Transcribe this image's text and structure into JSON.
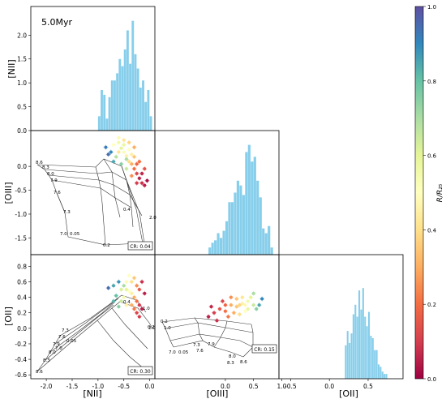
{
  "figure": {
    "age_label": "5.0Myr",
    "colorbar": {
      "label": "R/R₂₅",
      "ticks": [
        "0.0",
        "0.2",
        "0.4",
        "0.6",
        "0.8",
        "1.0"
      ],
      "colormap": "Spectral"
    }
  },
  "chart_data": [
    {
      "type": "bar",
      "panel": "hist-NII",
      "ylabel": "[NII]",
      "xlim": [
        -2.3,
        0.1
      ],
      "ylim": [
        0,
        2.6
      ],
      "yticks": [
        "0.0",
        "0.5",
        "1.0",
        "1.5",
        "2.0"
      ],
      "bin_width": 0.05,
      "bin_start": -1.0,
      "values": [
        0.3,
        0.85,
        0.75,
        0.25,
        0.7,
        1.05,
        1.05,
        1.2,
        1.5,
        1.35,
        1.7,
        2.1,
        1.4,
        2.3,
        1.6,
        1.3,
        0.9,
        1.05,
        0.6,
        0.85,
        0.3
      ],
      "color": "#87ceeb"
    },
    {
      "type": "scatter",
      "panel": "NII-vs-OIII",
      "ylabel": "[OIII]",
      "xlim": [
        -2.3,
        0.1
      ],
      "ylim": [
        -1.85,
        0.75
      ],
      "yticks": [
        "0.0",
        "-0.5",
        "-1.0",
        "-1.5"
      ],
      "grid_labels": [
        "8.6",
        "8.3",
        "8.0",
        "7.9",
        "7.6",
        "7.3",
        "7.0",
        "0.05",
        "0.2",
        "0.4",
        "1.0",
        "2.0"
      ],
      "annotation": "CR: 0.04",
      "points": [
        {
          "x": -0.7,
          "y": 0.45,
          "r": 0.5
        },
        {
          "x": -0.6,
          "y": 0.5,
          "r": 0.55
        },
        {
          "x": -0.55,
          "y": 0.38,
          "r": 0.6
        },
        {
          "x": -0.5,
          "y": 0.3,
          "r": 0.52
        },
        {
          "x": -0.45,
          "y": 0.22,
          "r": 0.45
        },
        {
          "x": -0.4,
          "y": 0.1,
          "r": 0.4
        },
        {
          "x": -0.35,
          "y": 0.05,
          "r": 0.3
        },
        {
          "x": -0.3,
          "y": -0.05,
          "r": 0.2
        },
        {
          "x": -0.25,
          "y": -0.15,
          "r": 0.12
        },
        {
          "x": -0.2,
          "y": -0.25,
          "r": 0.05
        },
        {
          "x": -0.15,
          "y": -0.35,
          "r": 0.08
        },
        {
          "x": -0.3,
          "y": 0.2,
          "r": 0.35
        },
        {
          "x": -0.4,
          "y": 0.35,
          "r": 0.5
        },
        {
          "x": -0.5,
          "y": 0.45,
          "r": 0.58
        },
        {
          "x": -0.6,
          "y": 0.3,
          "r": 0.42
        },
        {
          "x": -0.65,
          "y": 0.2,
          "r": 0.68
        },
        {
          "x": -0.75,
          "y": 0.3,
          "r": 0.9
        },
        {
          "x": -0.85,
          "y": 0.4,
          "r": 0.92
        },
        {
          "x": -0.55,
          "y": 0.05,
          "r": 0.75
        },
        {
          "x": -0.45,
          "y": -0.05,
          "r": 0.65
        },
        {
          "x": -0.35,
          "y": -0.2,
          "r": 0.25
        },
        {
          "x": -0.25,
          "y": -0.35,
          "r": 0.1
        },
        {
          "x": -0.2,
          "y": 0.1,
          "r": 0.2
        },
        {
          "x": -0.1,
          "y": -0.05,
          "r": 0.15
        },
        {
          "x": -0.1,
          "y": -0.4,
          "r": 0.05
        },
        {
          "x": -0.05,
          "y": -0.3,
          "r": 0.02
        },
        {
          "x": -0.6,
          "y": 0.6,
          "r": 0.48
        },
        {
          "x": -0.5,
          "y": 0.55,
          "r": 0.42
        },
        {
          "x": -0.4,
          "y": 0.5,
          "r": 0.38
        },
        {
          "x": -0.3,
          "y": 0.4,
          "r": 0.3
        },
        {
          "x": -0.7,
          "y": 0.1,
          "r": 0.85
        },
        {
          "x": -0.8,
          "y": 0.25,
          "r": 0.95
        },
        {
          "x": -0.45,
          "y": 0.15,
          "r": 0.7
        },
        {
          "x": -0.35,
          "y": 0.25,
          "r": 0.45
        },
        {
          "x": -0.25,
          "y": 0.05,
          "r": 0.18
        },
        {
          "x": -0.15,
          "y": -0.15,
          "r": 0.06
        }
      ]
    },
    {
      "type": "bar",
      "panel": "hist-OIII",
      "xlim": [
        -1.25,
        0.95
      ],
      "ylim": [
        0,
        2.6
      ],
      "bin_width": 0.05,
      "bin_start": -0.3,
      "values": [
        0.15,
        0.25,
        0.3,
        0.45,
        0.35,
        0.5,
        0.7,
        1.1,
        1.1,
        1.3,
        1.55,
        1.45,
        1.25,
        2.15,
        2.3,
        1.95,
        2.05,
        1.55,
        1.2,
        0.55,
        0.45,
        0.6,
        0.15
      ],
      "color": "#87ceeb"
    },
    {
      "type": "scatter",
      "panel": "NII-vs-OII",
      "xlabel": "[NII]",
      "ylabel": "[OII]",
      "xlim": [
        -2.3,
        0.1
      ],
      "ylim": [
        -0.65,
        0.95
      ],
      "xticks": [
        "-2.0",
        "-1.5",
        "-1.0",
        "-0.5",
        "0.0"
      ],
      "yticks": [
        "0.8",
        "0.6",
        "0.4",
        "0.2",
        "0.0",
        "-0.2",
        "-0.4",
        "-0.6"
      ],
      "grid_labels": [
        "8.6",
        "8.3",
        "8.0",
        "7.9",
        "7.6",
        "7.3",
        "7.0",
        "0.05",
        "0.2",
        "0.4",
        "1.0",
        "2.0"
      ],
      "annotation": "CR: 0.30",
      "points": [
        {
          "x": -0.7,
          "y": 0.55,
          "r": 0.85
        },
        {
          "x": -0.6,
          "y": 0.6,
          "r": 0.88
        },
        {
          "x": -0.5,
          "y": 0.55,
          "r": 0.7
        },
        {
          "x": -0.45,
          "y": 0.5,
          "r": 0.6
        },
        {
          "x": -0.4,
          "y": 0.48,
          "r": 0.5
        },
        {
          "x": -0.35,
          "y": 0.45,
          "r": 0.45
        },
        {
          "x": -0.3,
          "y": 0.4,
          "r": 0.3
        },
        {
          "x": -0.25,
          "y": 0.35,
          "r": 0.2
        },
        {
          "x": -0.2,
          "y": 0.3,
          "r": 0.1
        },
        {
          "x": -0.15,
          "y": 0.25,
          "r": 0.05
        },
        {
          "x": -0.35,
          "y": 0.6,
          "r": 0.4
        },
        {
          "x": -0.3,
          "y": 0.65,
          "r": 0.35
        },
        {
          "x": -0.25,
          "y": 0.55,
          "r": 0.25
        },
        {
          "x": -0.2,
          "y": 0.5,
          "r": 0.15
        },
        {
          "x": -0.5,
          "y": 0.4,
          "r": 0.55
        },
        {
          "x": -0.55,
          "y": 0.35,
          "r": 0.65
        },
        {
          "x": -0.45,
          "y": 0.3,
          "r": 0.45
        },
        {
          "x": -0.35,
          "y": 0.3,
          "r": 0.3
        },
        {
          "x": -0.25,
          "y": 0.2,
          "r": 0.12
        },
        {
          "x": -0.8,
          "y": 0.52,
          "r": 0.95
        },
        {
          "x": -0.65,
          "y": 0.42,
          "r": 0.8
        },
        {
          "x": -0.4,
          "y": 0.68,
          "r": 0.5
        },
        {
          "x": -0.1,
          "y": 0.45,
          "r": 0.05
        },
        {
          "x": -0.15,
          "y": 0.6,
          "r": 0.08
        },
        {
          "x": -0.3,
          "y": 0.25,
          "r": 0.22
        },
        {
          "x": -0.2,
          "y": 0.15,
          "r": 0.1
        },
        {
          "x": -0.55,
          "y": 0.5,
          "r": 0.62
        },
        {
          "x": -0.6,
          "y": 0.28,
          "r": 0.75
        },
        {
          "x": -0.7,
          "y": 0.35,
          "r": 0.82
        },
        {
          "x": -0.45,
          "y": 0.6,
          "r": 0.48
        }
      ]
    },
    {
      "type": "scatter",
      "panel": "OIII-vs-OII",
      "xlabel": "[OIII]",
      "xlim": [
        -1.25,
        0.95
      ],
      "ylim": [
        -0.65,
        0.95
      ],
      "xticks": [
        "0.0",
        "0.5",
        "1.0"
      ],
      "grid_labels": [
        "0.2",
        "1.0",
        "7.0",
        "0.05",
        "7.3",
        "7.6",
        "7.9",
        "8.0",
        "8.3",
        "8.6"
      ],
      "annotation": "CR: 0.15",
      "points": [
        {
          "x": -0.2,
          "y": 0.2,
          "r": 0.1
        },
        {
          "x": -0.1,
          "y": 0.25,
          "r": 0.15
        },
        {
          "x": 0.0,
          "y": 0.22,
          "r": 0.2
        },
        {
          "x": 0.1,
          "y": 0.3,
          "r": 0.3
        },
        {
          "x": 0.2,
          "y": 0.28,
          "r": 0.35
        },
        {
          "x": 0.3,
          "y": 0.32,
          "r": 0.45
        },
        {
          "x": 0.4,
          "y": 0.35,
          "r": 0.55
        },
        {
          "x": 0.5,
          "y": 0.3,
          "r": 0.65
        },
        {
          "x": 0.55,
          "y": 0.25,
          "r": 0.75
        },
        {
          "x": 0.6,
          "y": 0.3,
          "r": 0.85
        },
        {
          "x": -0.3,
          "y": 0.15,
          "r": 0.05
        },
        {
          "x": -0.15,
          "y": 0.1,
          "r": 0.08
        },
        {
          "x": 0.05,
          "y": 0.15,
          "r": 0.22
        },
        {
          "x": 0.15,
          "y": 0.2,
          "r": 0.3
        },
        {
          "x": 0.25,
          "y": 0.18,
          "r": 0.4
        },
        {
          "x": 0.35,
          "y": 0.22,
          "r": 0.5
        },
        {
          "x": 0.45,
          "y": 0.4,
          "r": 0.6
        },
        {
          "x": 0.3,
          "y": 0.4,
          "r": 0.42
        },
        {
          "x": 0.2,
          "y": 0.38,
          "r": 0.35
        },
        {
          "x": 0.1,
          "y": 0.4,
          "r": 0.25
        },
        {
          "x": -0.05,
          "y": 0.35,
          "r": 0.12
        },
        {
          "x": 0.5,
          "y": 0.45,
          "r": 0.7
        },
        {
          "x": 0.4,
          "y": 0.25,
          "r": 0.58
        },
        {
          "x": 0.65,
          "y": 0.38,
          "r": 0.9
        },
        {
          "x": 0.0,
          "y": 0.3,
          "r": 0.18
        },
        {
          "x": 0.25,
          "y": 0.3,
          "r": 0.38
        },
        {
          "x": -0.25,
          "y": 0.28,
          "r": 0.06
        },
        {
          "x": 0.35,
          "y": 0.3,
          "r": 0.48
        }
      ]
    },
    {
      "type": "bar",
      "panel": "hist-OII",
      "xlabel": "[OII]",
      "xlim": [
        -0.65,
        0.95
      ],
      "xticks": [
        "-0.5",
        "0.0",
        "0.5"
      ],
      "ylim": [
        0,
        2.6
      ],
      "bin_width": 0.025,
      "bin_start": 0.2,
      "values": [
        0.7,
        1.0,
        0.75,
        0.95,
        1.35,
        1.55,
        1.3,
        1.85,
        1.45,
        1.9,
        1.3,
        1.1,
        1.4,
        0.9,
        0.85,
        0.6,
        0.6,
        0.3,
        0.25,
        0.15,
        0.1,
        0.1
      ],
      "color": "#87ceeb"
    }
  ]
}
